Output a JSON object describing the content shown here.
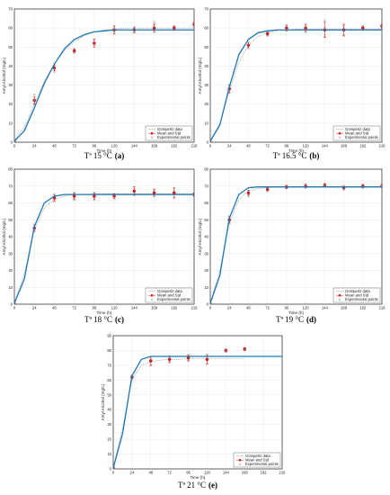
{
  "chart_data": [
    {
      "type": "line",
      "caption": "Tª 15 °C",
      "caption_letter": "(a)",
      "xlabel": "Time (h)",
      "ylabel": "Amyl Alcohol (mg/L)",
      "xlim": [
        0,
        216
      ],
      "ylim": [
        0,
        70
      ],
      "xticks": [
        0,
        24,
        48,
        72,
        96,
        120,
        144,
        168,
        192,
        216
      ],
      "yticks": [
        0,
        10,
        20,
        30,
        40,
        50,
        60,
        70
      ],
      "grid": true,
      "legend_position": "bottom-right",
      "series": [
        {
          "name": "Gompertz data",
          "style": "dotted-line",
          "x": [
            0,
            12,
            24,
            36,
            48,
            60,
            72,
            84,
            96,
            108,
            120,
            132,
            144,
            156,
            168,
            180,
            192,
            204,
            216
          ],
          "y": [
            1,
            8,
            20,
            32,
            41,
            48,
            53,
            56,
            58,
            59,
            59.5,
            59.8,
            60,
            60,
            60,
            60,
            60,
            60,
            60
          ]
        },
        {
          "name": "Mean and Std",
          "style": "red-marker-errorbar",
          "x": [
            0,
            24,
            48,
            72,
            96,
            120,
            144,
            168,
            192,
            216
          ],
          "y": [
            0,
            22,
            39,
            48,
            52,
            59,
            59,
            60,
            60,
            62
          ],
          "err": [
            0.5,
            2,
            1.5,
            1,
            2,
            2,
            1.5,
            2,
            1,
            1
          ]
        },
        {
          "name": "Experimental points",
          "style": "gray-x",
          "x": [
            0,
            0,
            24,
            24,
            24,
            48,
            48,
            48,
            72,
            72,
            96,
            96,
            120,
            120,
            120,
            144,
            144,
            168,
            168,
            168,
            192,
            192,
            216,
            216
          ],
          "y": [
            0,
            1,
            20,
            22,
            25,
            37,
            39,
            41,
            47,
            49,
            51,
            54,
            57,
            59,
            61,
            58,
            60,
            58,
            61,
            63,
            59,
            61,
            61,
            63
          ]
        },
        {
          "name": "",
          "style": "blue-fit",
          "x": [
            0,
            12,
            24,
            36,
            48,
            60,
            72,
            84,
            96,
            108,
            120,
            132,
            144,
            156,
            168,
            180,
            192,
            204,
            216
          ],
          "y": [
            0.5,
            6,
            18,
            31,
            41,
            49,
            54,
            56.5,
            58,
            58.5,
            59,
            59,
            59,
            59,
            59,
            59,
            59,
            59,
            59
          ]
        }
      ]
    },
    {
      "type": "line",
      "caption": "Tª 16.5 °C",
      "caption_letter": "(b)",
      "xlabel": "Time (h)",
      "ylabel": "Amyl Alcohol (mg/L)",
      "xlim": [
        0,
        216
      ],
      "ylim": [
        0,
        70
      ],
      "xticks": [
        0,
        24,
        48,
        72,
        96,
        120,
        144,
        168,
        192,
        216
      ],
      "yticks": [
        0,
        10,
        20,
        30,
        40,
        50,
        60,
        70
      ],
      "grid": true,
      "legend_position": "bottom-right",
      "series": [
        {
          "name": "Gompertz data",
          "style": "dotted-line",
          "x": [
            0,
            12,
            24,
            36,
            48,
            60,
            72,
            84,
            96,
            108,
            120,
            132,
            144,
            156,
            168,
            180,
            192,
            204,
            216
          ],
          "y": [
            1,
            10,
            27,
            42,
            51,
            55.5,
            57.5,
            58.5,
            59,
            59.5,
            59.5,
            59.5,
            59.5,
            59.5,
            59.5,
            59.5,
            59.5,
            59.5,
            59.5
          ]
        },
        {
          "name": "Mean and Std",
          "style": "red-marker-errorbar",
          "x": [
            0,
            24,
            48,
            72,
            96,
            120,
            144,
            168,
            192,
            216
          ],
          "y": [
            0,
            28,
            51,
            57,
            60,
            60,
            59,
            59,
            60,
            61
          ],
          "err": [
            0.5,
            2,
            1.5,
            1,
            1.5,
            2,
            4,
            3,
            1,
            1
          ]
        },
        {
          "name": "Experimental points",
          "style": "gray-x",
          "x": [
            0,
            0,
            24,
            24,
            48,
            48,
            72,
            72,
            96,
            96,
            120,
            120,
            144,
            144,
            144,
            168,
            168,
            192,
            192,
            216
          ],
          "y": [
            0,
            1,
            26,
            30,
            50,
            52,
            56,
            58,
            59,
            61,
            58,
            61,
            56,
            60,
            64,
            56,
            61,
            59,
            61,
            61
          ]
        },
        {
          "name": "",
          "style": "blue-fit",
          "x": [
            0,
            12,
            24,
            36,
            48,
            60,
            72,
            84,
            96,
            108,
            120,
            132,
            144,
            156,
            168,
            180,
            192,
            204,
            216
          ],
          "y": [
            0.5,
            9,
            29,
            46,
            54,
            57.5,
            58.5,
            59,
            59,
            59,
            59,
            59,
            59,
            59,
            59,
            59,
            59,
            59,
            59
          ]
        }
      ]
    },
    {
      "type": "line",
      "caption": "Tª 18 °C",
      "caption_letter": "(c)",
      "xlabel": "Time (h)",
      "ylabel": "Amyl Alcohol (mg/L)",
      "xlim": [
        0,
        216
      ],
      "ylim": [
        0,
        80
      ],
      "xticks": [
        0,
        24,
        48,
        72,
        96,
        120,
        144,
        168,
        192,
        216
      ],
      "yticks": [
        0,
        10,
        20,
        30,
        40,
        50,
        60,
        70,
        80
      ],
      "grid": true,
      "legend_position": "bottom-right",
      "series": [
        {
          "name": "Gompertz data",
          "style": "dotted-line",
          "x": [
            0,
            12,
            24,
            36,
            48,
            60,
            72,
            84,
            96,
            108,
            120,
            132,
            144,
            156,
            168,
            180,
            192,
            204,
            216
          ],
          "y": [
            1,
            18,
            44,
            57,
            62,
            64,
            65,
            65,
            65.5,
            65.5,
            65.5,
            65.5,
            65.5,
            65.5,
            65.5,
            65.5,
            65.5,
            65.5,
            65.5
          ]
        },
        {
          "name": "Mean and Std",
          "style": "red-marker-errorbar",
          "x": [
            0,
            24,
            48,
            72,
            96,
            120,
            144,
            168,
            192,
            216
          ],
          "y": [
            0,
            45,
            63,
            64,
            64,
            64,
            67,
            66,
            66,
            65
          ],
          "err": [
            0.5,
            2,
            2,
            2,
            2,
            1.5,
            2.5,
            2,
            3,
            1
          ]
        },
        {
          "name": "Experimental points",
          "style": "gray-x",
          "x": [
            0,
            0,
            24,
            24,
            48,
            48,
            72,
            72,
            96,
            96,
            120,
            120,
            144,
            144,
            168,
            168,
            192,
            192,
            216
          ],
          "y": [
            0,
            1,
            44,
            47,
            61,
            65,
            62,
            66,
            62,
            66,
            63,
            65,
            65,
            69,
            64,
            68,
            63,
            68,
            65
          ]
        },
        {
          "name": "",
          "style": "blue-fit",
          "x": [
            0,
            12,
            24,
            36,
            48,
            60,
            72,
            84,
            96,
            108,
            120,
            132,
            144,
            156,
            168,
            180,
            192,
            204,
            216
          ],
          "y": [
            0.5,
            15,
            46,
            60,
            64,
            65,
            65,
            65,
            65,
            65,
            65,
            65,
            65,
            65,
            65,
            65,
            65,
            65,
            65
          ]
        }
      ]
    },
    {
      "type": "line",
      "caption": "Tª 19 °C",
      "caption_letter": "(d)",
      "xlabel": "Time (h)",
      "ylabel": "Amyl Alcohol (mg/L)",
      "xlim": [
        0,
        216
      ],
      "ylim": [
        0,
        80
      ],
      "xticks": [
        0,
        24,
        48,
        72,
        96,
        120,
        144,
        168,
        192,
        216
      ],
      "yticks": [
        0,
        10,
        20,
        30,
        40,
        50,
        60,
        70,
        80
      ],
      "grid": true,
      "legend_position": "bottom-right",
      "series": [
        {
          "name": "Gompertz data",
          "style": "dotted-line",
          "x": [
            0,
            12,
            24,
            36,
            48,
            60,
            72,
            84,
            96,
            108,
            120,
            132,
            144,
            156,
            168,
            180,
            192,
            204,
            216
          ],
          "y": [
            1,
            20,
            48,
            62,
            67,
            68.5,
            69,
            69.5,
            69.5,
            69.5,
            69.5,
            69.5,
            69.5,
            69.5,
            69.5,
            69.5,
            69.5,
            69.5,
            69.5
          ]
        },
        {
          "name": "Mean and Std",
          "style": "red-marker-errorbar",
          "x": [
            0,
            24,
            48,
            72,
            96,
            120,
            144,
            168,
            192,
            216
          ],
          "y": [
            0,
            50,
            66,
            68,
            69.5,
            70,
            70.5,
            69,
            70,
            70
          ],
          "err": [
            0.5,
            2,
            1.5,
            1,
            1,
            1,
            1,
            1,
            1,
            1
          ]
        },
        {
          "name": "Experimental points",
          "style": "gray-x",
          "x": [
            0,
            0,
            24,
            24,
            48,
            48,
            72,
            72,
            96,
            96,
            120,
            120,
            144,
            144,
            168,
            168,
            192,
            192,
            216
          ],
          "y": [
            0,
            1,
            48,
            52,
            64,
            67,
            67,
            69,
            69,
            70,
            69,
            71,
            70,
            71,
            68,
            70,
            69,
            70,
            70
          ]
        },
        {
          "name": "",
          "style": "blue-fit",
          "x": [
            0,
            12,
            24,
            36,
            48,
            60,
            72,
            84,
            96,
            108,
            120,
            132,
            144,
            156,
            168,
            180,
            192,
            204,
            216
          ],
          "y": [
            0.5,
            17,
            51,
            65,
            69,
            69.5,
            69.5,
            69.5,
            69.5,
            69.5,
            69.5,
            69.5,
            69.5,
            69.5,
            69.5,
            69.5,
            69.5,
            69.5,
            69.5
          ]
        }
      ]
    },
    {
      "type": "line",
      "caption": "Tª 21 °C",
      "caption_letter": "(e)",
      "xlabel": "Time (h)",
      "ylabel": "Amyl Alcohol (mg/L)",
      "xlim": [
        0,
        216
      ],
      "ylim": [
        0,
        90
      ],
      "xticks": [
        0,
        24,
        48,
        72,
        96,
        120,
        144,
        168,
        192,
        216
      ],
      "yticks": [
        0,
        10,
        20,
        30,
        40,
        50,
        60,
        70,
        80,
        90
      ],
      "grid": true,
      "legend_position": "bottom-right",
      "series": [
        {
          "name": "Gompertz data",
          "style": "dotted-line",
          "x": [
            0,
            12,
            24,
            36,
            48,
            60,
            72,
            84,
            96,
            108,
            120,
            132,
            144,
            156,
            168
          ],
          "y": [
            1,
            28,
            60,
            70,
            72.5,
            73.5,
            74,
            74,
            74.5,
            74.5,
            74.5,
            74.5,
            74.5,
            74.5,
            74.5
          ]
        },
        {
          "name": "Mean and Std",
          "style": "red-marker-errorbar",
          "x": [
            0,
            24,
            48,
            72,
            96,
            120,
            144,
            168
          ],
          "y": [
            1,
            62,
            73,
            74,
            75,
            74,
            80,
            81
          ],
          "err": [
            0.5,
            1,
            3,
            2,
            2,
            3,
            1,
            1
          ]
        },
        {
          "name": "Experimental points",
          "style": "gray-x",
          "x": [
            0,
            0,
            24,
            24,
            48,
            48,
            72,
            72,
            96,
            96,
            120,
            120,
            144,
            168
          ],
          "y": [
            0,
            2,
            61,
            63,
            70,
            75,
            72,
            76,
            73,
            77,
            71,
            77,
            80,
            81
          ]
        },
        {
          "name": "",
          "style": "blue-fit",
          "x": [
            0,
            12,
            24,
            36,
            48,
            60,
            72,
            84,
            96,
            108,
            120,
            132,
            144,
            156,
            168,
            180,
            192,
            204,
            216
          ],
          "y": [
            0.5,
            24,
            63,
            74,
            76,
            76,
            76,
            76,
            76,
            76,
            76,
            76,
            76,
            76,
            76,
            76,
            76,
            76,
            76
          ]
        }
      ]
    }
  ],
  "colors": {
    "fit": "#1f77b4",
    "mean": "#e41a1c",
    "points": "#888888",
    "gompertz": "#777777"
  }
}
